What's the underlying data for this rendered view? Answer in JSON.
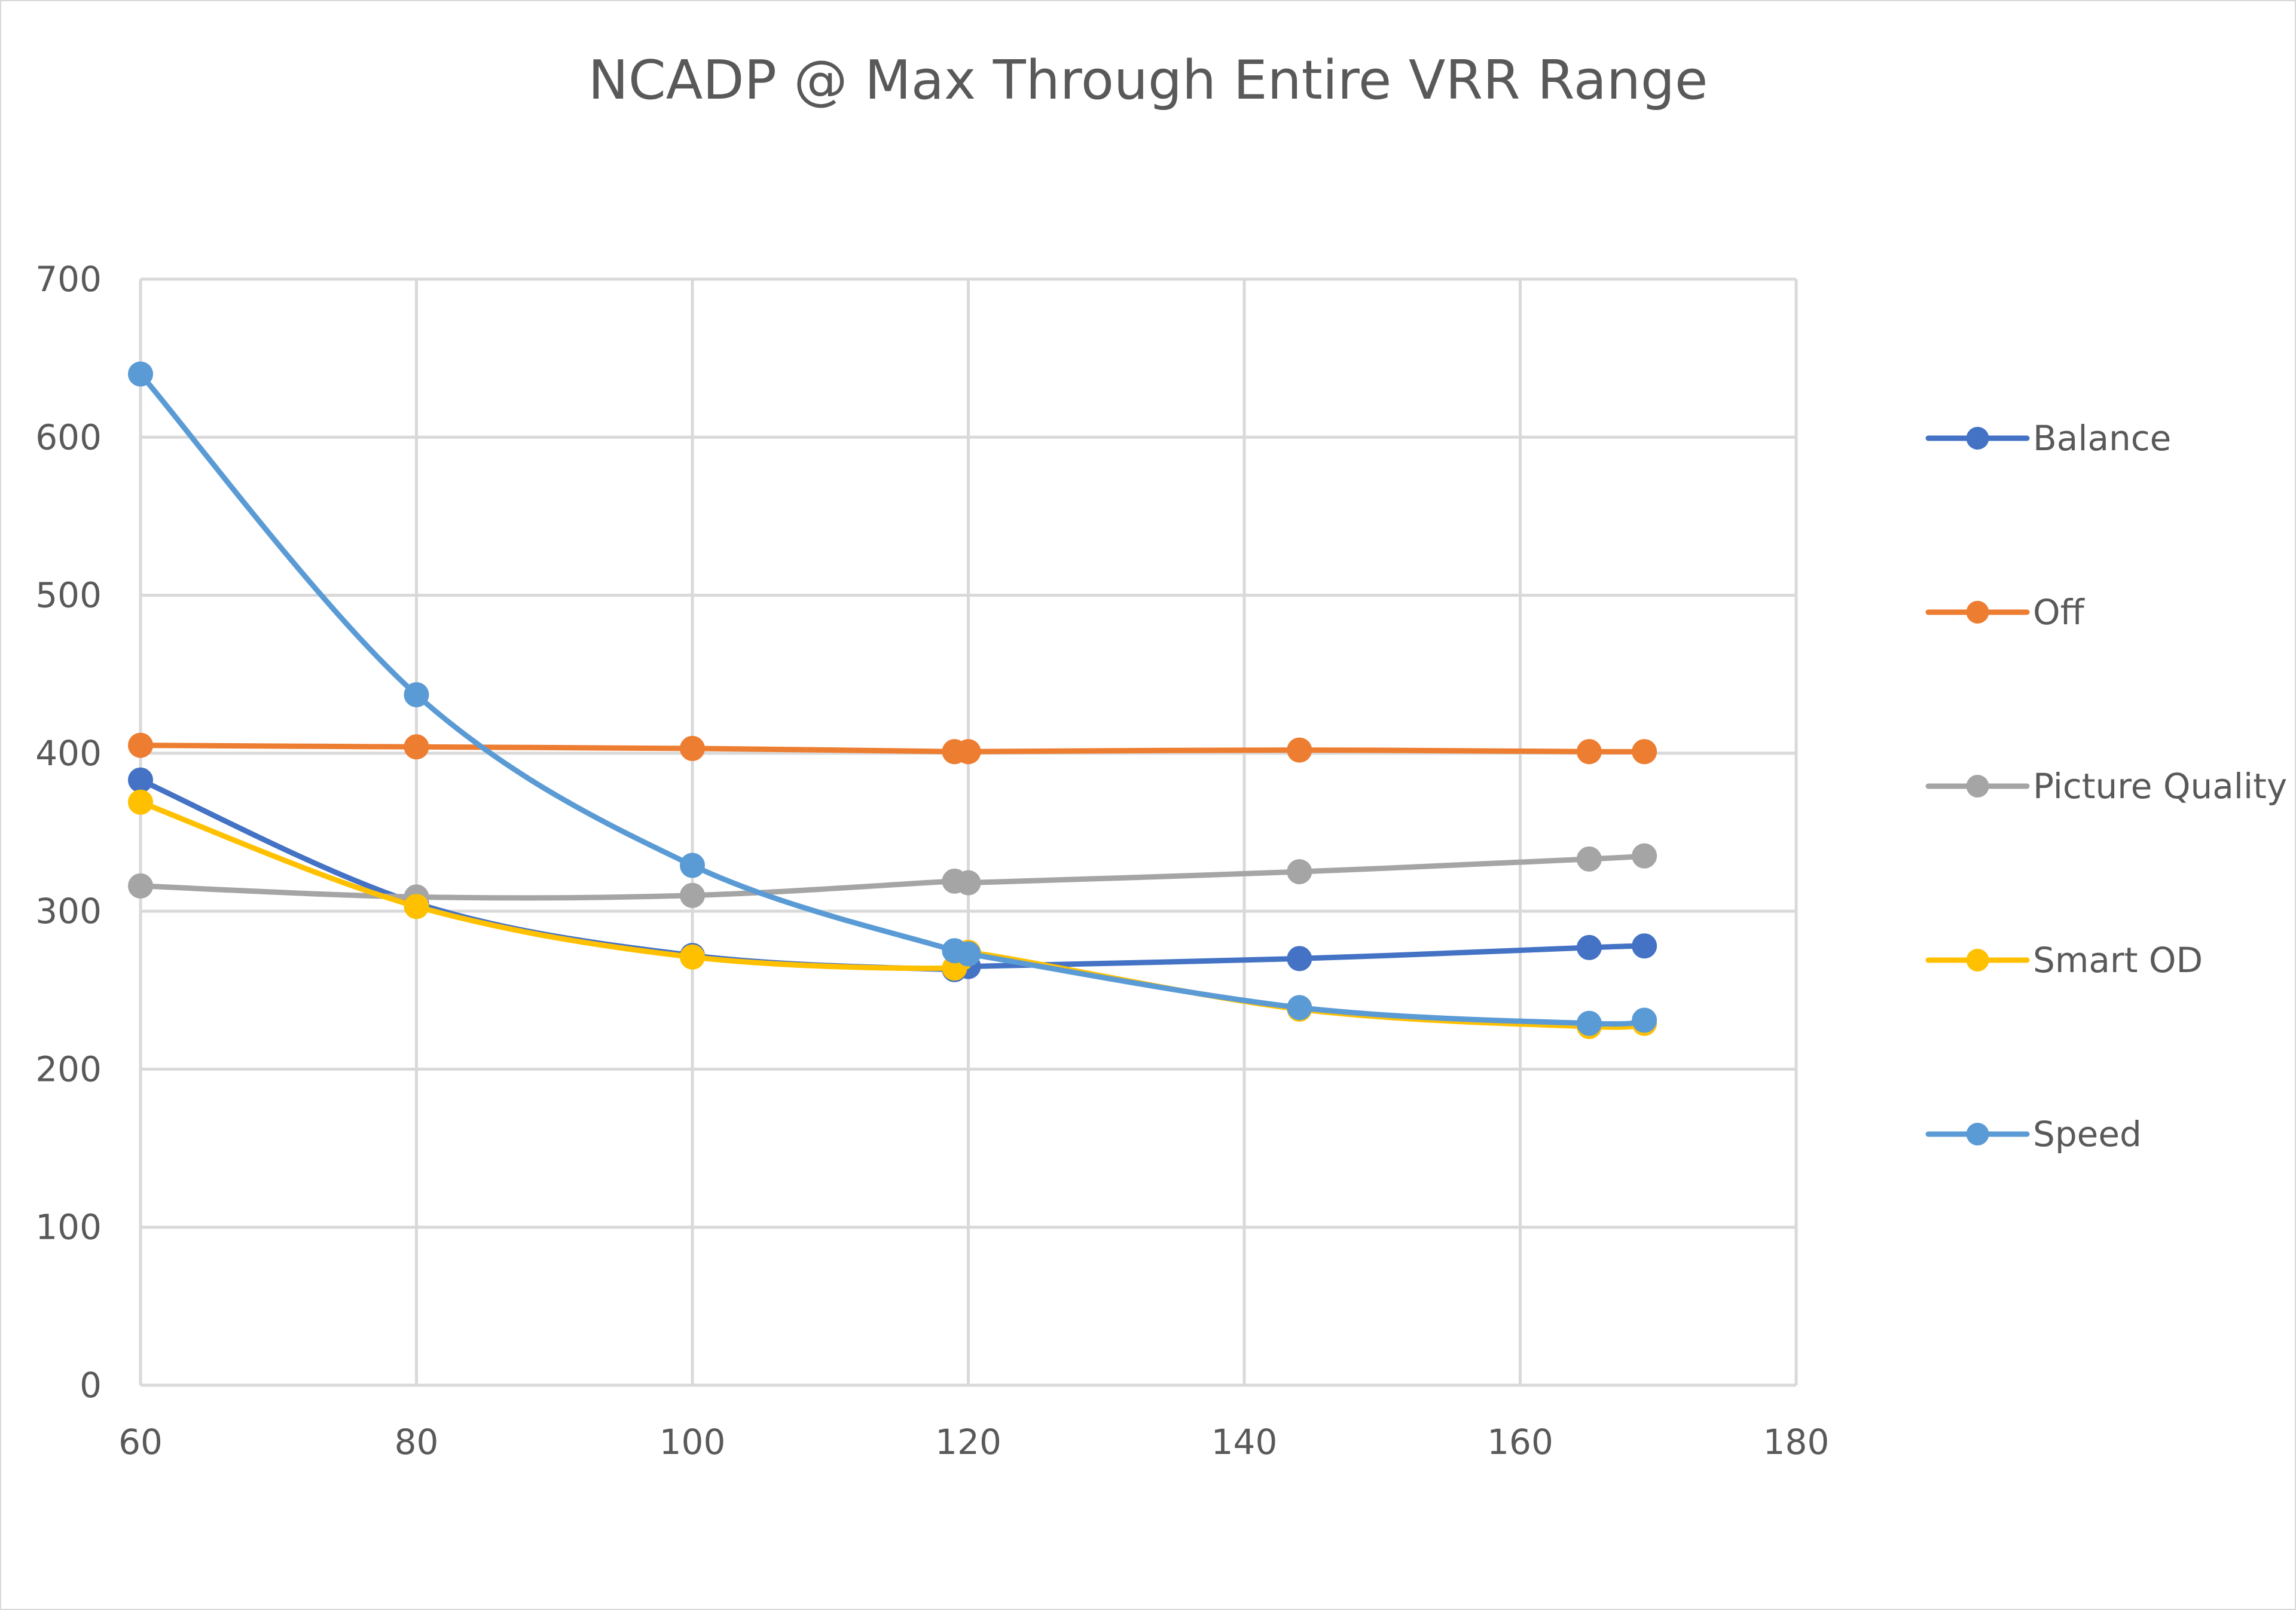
{
  "chart_data": {
    "type": "scatter",
    "subtype": "scatter-smooth-lines-with-markers",
    "title": "NCADP @ Max Through Entire VRR Range",
    "xlabel": "",
    "ylabel": "",
    "xlim": [
      60,
      180
    ],
    "ylim": [
      0,
      700
    ],
    "x_ticks": [
      60,
      80,
      100,
      120,
      140,
      160,
      180
    ],
    "y_ticks": [
      0,
      100,
      200,
      300,
      400,
      500,
      600,
      700
    ],
    "x_tick_labels": [
      "60",
      "80",
      "100",
      "120",
      "140",
      "160",
      "180"
    ],
    "y_tick_labels": [
      "0",
      "100",
      "200",
      "300",
      "400",
      "500",
      "600",
      "700"
    ],
    "grid": true,
    "legend_position": "right",
    "x": [
      60,
      80,
      100,
      119,
      120,
      144,
      165,
      169
    ],
    "series": [
      {
        "name": "Balance",
        "color": "#4472C4",
        "values": [
          383,
          305,
          272,
          263,
          265,
          270,
          277,
          278
        ]
      },
      {
        "name": "Off",
        "color": "#ED7D31",
        "values": [
          405,
          404,
          403,
          401,
          401,
          402,
          401,
          401
        ]
      },
      {
        "name": "Picture Quality",
        "color": "#A5A5A5",
        "values": [
          316,
          309,
          310,
          319,
          318,
          325,
          333,
          335
        ]
      },
      {
        "name": "Smart OD",
        "color": "#FFC000",
        "values": [
          369,
          303,
          271,
          264,
          274,
          238,
          227,
          229
        ]
      },
      {
        "name": "Speed",
        "color": "#5B9BD5",
        "values": [
          640,
          437,
          329,
          275,
          273,
          239,
          229,
          231
        ]
      }
    ]
  }
}
